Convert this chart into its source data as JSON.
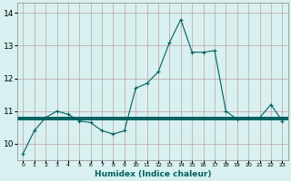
{
  "title": "",
  "xlabel": "Humidex (Indice chaleur)",
  "bg_color": "#d8f0f0",
  "plot_bg_color": "#d8f0f0",
  "grid_color": "#c0a0a0",
  "line_color": "#006060",
  "xlim": [
    -0.5,
    23.5
  ],
  "ylim": [
    9.5,
    14.3
  ],
  "yticks": [
    10,
    11,
    12,
    13,
    14
  ],
  "xtick_labels": [
    "0",
    "1",
    "2",
    "3",
    "4",
    "5",
    "6",
    "7",
    "8",
    "9",
    "10",
    "11",
    "12",
    "13",
    "14",
    "15",
    "16",
    "17",
    "18",
    "19",
    "20",
    "21",
    "22",
    "23"
  ],
  "main_series": [
    9.7,
    10.4,
    10.8,
    11.0,
    10.9,
    10.7,
    10.65,
    10.4,
    10.3,
    10.4,
    11.7,
    11.85,
    12.2,
    13.1,
    13.8,
    12.8,
    12.8,
    12.85,
    11.0,
    10.75,
    10.8,
    10.8,
    11.2,
    10.7
  ],
  "flat_lines": [
    10.82,
    10.79,
    10.77,
    10.75
  ]
}
